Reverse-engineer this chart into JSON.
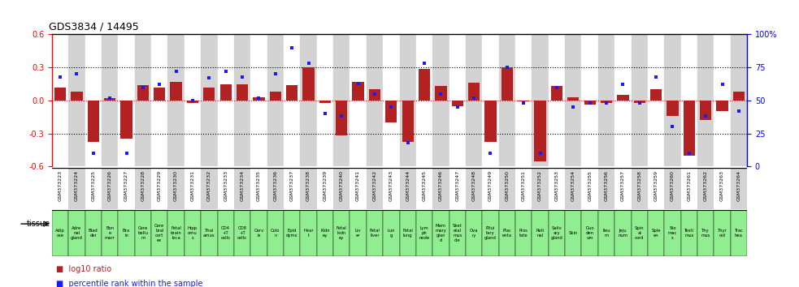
{
  "title": "GDS3834 / 14495",
  "samples": [
    "GSM373223",
    "GSM373224",
    "GSM373225",
    "GSM373226",
    "GSM373227",
    "GSM373228",
    "GSM373229",
    "GSM373230",
    "GSM373231",
    "GSM373232",
    "GSM373233",
    "GSM373234",
    "GSM373235",
    "GSM373236",
    "GSM373237",
    "GSM373238",
    "GSM373239",
    "GSM373240",
    "GSM373241",
    "GSM373242",
    "GSM373243",
    "GSM373244",
    "GSM373245",
    "GSM373246",
    "GSM373247",
    "GSM373248",
    "GSM373249",
    "GSM373250",
    "GSM373251",
    "GSM373252",
    "GSM373253",
    "GSM373254",
    "GSM373255",
    "GSM373256",
    "GSM373257",
    "GSM373258",
    "GSM373259",
    "GSM373260",
    "GSM373261",
    "GSM373262",
    "GSM373263",
    "GSM373264"
  ],
  "tissue_labels": [
    "Adip\nose",
    "Adre\nnal\ngland",
    "Blad\nder",
    "Bon\ne\nmarr",
    "Bra\nin",
    "Cere\nbellu\nm",
    "Cere\nbral\ncort\nex",
    "Fetal\nbrain\nloca",
    "Hipp\nomu\ns",
    "Thal\namus",
    "CD4\n+T\ncells",
    "CD8\n+T\ncells",
    "Cerv\nix",
    "Colo\nn",
    "Epid\ndyms",
    "Hear\nt",
    "Kidn\ney",
    "Fetal\nkidn\ney",
    "Liv\ner",
    "Fetal\nliver",
    "Lun\ng",
    "Fetal\nlung",
    "Lym\nph\nnode",
    "Mam\nmary\nglan\nd",
    "Sket\netal\nmus\ncle",
    "Ova\nry",
    "Pitui\ntary\ngland",
    "Plac\nenta",
    "Pros\ntate",
    "Reti\nnal",
    "Saliv\nary\ngland",
    "Skin",
    "Duo\nden\num",
    "Ileu\nm",
    "Jeju\nnum",
    "Spin\nal\ncord",
    "Sple\nen",
    "Sto\nmac\ns",
    "Testi\nmus",
    "Thy\nmus",
    "Thyr\noid",
    "Trac\nhea"
  ],
  "log10_ratio": [
    0.12,
    0.08,
    -0.38,
    0.02,
    -0.35,
    0.14,
    0.12,
    0.17,
    -0.02,
    0.12,
    0.15,
    0.15,
    0.03,
    0.08,
    0.14,
    0.3,
    -0.02,
    -0.32,
    0.17,
    0.1,
    -0.2,
    -0.38,
    0.29,
    0.13,
    -0.05,
    0.16,
    -0.38,
    0.3,
    -0.01,
    -0.55,
    0.13,
    0.03,
    -0.04,
    -0.02,
    0.05,
    -0.02,
    0.1,
    -0.14,
    -0.5,
    -0.18,
    -0.1,
    0.08
  ],
  "percentile": [
    68,
    70,
    10,
    52,
    10,
    60,
    62,
    72,
    50,
    67,
    72,
    68,
    52,
    70,
    90,
    78,
    40,
    38,
    63,
    55,
    45,
    18,
    78,
    55,
    45,
    52,
    10,
    75,
    48,
    10,
    60,
    45,
    48,
    48,
    62,
    48,
    68,
    30,
    10,
    38,
    62,
    42
  ],
  "bar_color": "#b22222",
  "dot_color": "#1a1aff",
  "bg_color_light": "#ffffff",
  "bg_color_dark": "#d3d3d3",
  "tissue_bg": "#90ee90",
  "ylim": [
    -0.6,
    0.6
  ],
  "yticks_left": [
    -0.6,
    -0.3,
    0.0,
    0.3,
    0.6
  ],
  "yticks_right": [
    0,
    25,
    50,
    75,
    100
  ],
  "dotted_lines": [
    -0.3,
    0.0,
    0.3
  ]
}
